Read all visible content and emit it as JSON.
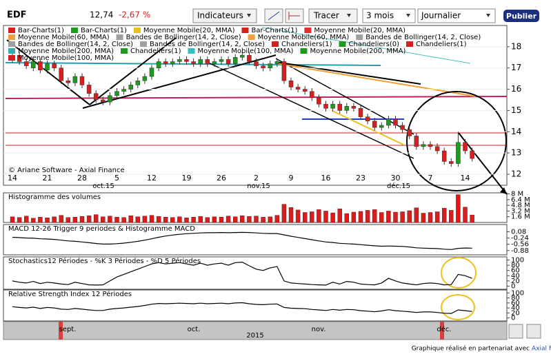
{
  "toolbar": {
    "symbol": "EDF",
    "price": "12,74",
    "change": "-2,67 %",
    "indicators": "Indicateurs",
    "draw": "Tracer",
    "period": "3 mois",
    "interval": "Journalier",
    "publish": "Publier"
  },
  "copyright": "© Ariane Software - Axial Finance",
  "x_group_labels": [
    "oct.15",
    "nov.15",
    "déc.15"
  ],
  "navigator": {
    "months": [
      "sept.",
      "oct.",
      "nov.",
      "déc."
    ],
    "year": "2015"
  },
  "footer": {
    "text": "Graphique réalisé en partenariat avec",
    "link": "Axial Finance"
  },
  "chart_data": [
    {
      "type": "candlestick",
      "categories": [
        "14",
        null,
        null,
        null,
        null,
        "21",
        null,
        null,
        null,
        null,
        "28",
        null,
        null,
        null,
        null,
        "5",
        null,
        null,
        null,
        null,
        "12",
        null,
        null,
        null,
        null,
        "19",
        null,
        null,
        null,
        null,
        "26",
        null,
        null,
        null,
        null,
        "2",
        null,
        null,
        null,
        null,
        "9",
        null,
        null,
        null,
        null,
        "16",
        null,
        null,
        null,
        null,
        "23",
        null,
        null,
        null,
        null,
        "30",
        null,
        null,
        null,
        null,
        "7",
        null,
        null,
        null,
        null,
        "14",
        null
      ],
      "open": [
        17.4,
        17.6,
        17.3,
        17.0,
        17.3,
        16.9,
        17.2,
        17.0,
        16.4,
        16.3,
        16.6,
        16.2,
        15.8,
        15.5,
        15.4,
        15.7,
        15.9,
        16.0,
        16.2,
        16.4,
        16.6,
        17.0,
        17.3,
        17.2,
        17.3,
        17.4,
        17.3,
        17.2,
        17.4,
        17.2,
        17.3,
        17.4,
        17.2,
        17.5,
        17.6,
        17.3,
        17.1,
        17.0,
        17.2,
        17.3,
        16.4,
        16.1,
        16.0,
        15.9,
        15.6,
        15.3,
        15.1,
        15.3,
        15.0,
        15.2,
        15.1,
        14.7,
        14.5,
        14.2,
        14.3,
        14.6,
        14.3,
        14.1,
        13.8,
        13.3,
        13.4,
        13.3,
        13.1,
        12.6,
        12.5,
        13.5,
        13.1
      ],
      "high": [
        17.75,
        17.75,
        17.45,
        17.45,
        17.45,
        17.35,
        17.35,
        17.15,
        16.55,
        16.75,
        16.75,
        16.35,
        15.95,
        15.65,
        15.85,
        16.05,
        16.15,
        16.35,
        16.55,
        16.75,
        17.15,
        17.45,
        17.45,
        17.45,
        17.55,
        17.55,
        17.45,
        17.55,
        17.55,
        17.45,
        17.55,
        17.55,
        17.65,
        17.75,
        17.75,
        17.45,
        17.25,
        17.35,
        17.45,
        17.45,
        16.55,
        16.25,
        16.15,
        16.05,
        15.75,
        15.45,
        15.45,
        15.45,
        15.35,
        15.35,
        15.25,
        14.85,
        14.65,
        14.45,
        14.75,
        14.75,
        14.45,
        14.25,
        13.95,
        13.55,
        13.55,
        13.45,
        13.25,
        12.75,
        14.0,
        13.65,
        13.25
      ],
      "low": [
        17.25,
        17.15,
        16.95,
        16.85,
        16.75,
        16.75,
        16.85,
        16.25,
        16.15,
        16.15,
        16.05,
        15.65,
        15.35,
        15.25,
        15.25,
        15.55,
        15.75,
        15.85,
        16.05,
        16.25,
        16.45,
        16.85,
        17.05,
        17.05,
        17.15,
        17.15,
        17.05,
        17.05,
        17.05,
        17.05,
        17.15,
        17.05,
        17.05,
        17.35,
        17.15,
        16.95,
        16.85,
        16.85,
        17.05,
        16.25,
        15.95,
        15.85,
        15.75,
        15.45,
        15.15,
        14.95,
        14.95,
        14.85,
        14.85,
        14.95,
        14.55,
        14.35,
        14.05,
        14.05,
        14.15,
        14.15,
        13.95,
        13.65,
        13.15,
        13.15,
        13.15,
        12.95,
        12.45,
        12.35,
        12.35,
        12.95,
        12.6
      ],
      "close": [
        17.6,
        17.3,
        17.1,
        17.3,
        16.9,
        17.2,
        17.0,
        16.4,
        16.3,
        16.6,
        16.2,
        15.8,
        15.5,
        15.4,
        15.7,
        15.9,
        16.0,
        16.2,
        16.4,
        16.6,
        17.0,
        17.3,
        17.2,
        17.3,
        17.4,
        17.3,
        17.2,
        17.4,
        17.2,
        17.3,
        17.4,
        17.2,
        17.5,
        17.6,
        17.3,
        17.1,
        17.0,
        17.2,
        17.3,
        16.4,
        16.1,
        16.0,
        15.9,
        15.6,
        15.3,
        15.1,
        15.3,
        15.0,
        15.2,
        15.1,
        14.7,
        14.5,
        14.2,
        14.3,
        14.6,
        14.3,
        14.1,
        13.8,
        13.3,
        13.4,
        13.3,
        13.1,
        12.6,
        12.5,
        13.5,
        13.1,
        12.74
      ],
      "up_color": "#1f9a1f",
      "down_color": "#d42020",
      "ylim": [
        11.48,
        19.0
      ],
      "yticks": [
        12,
        13,
        14,
        15,
        16,
        17,
        18
      ],
      "legend": [
        {
          "name": "Bar-Charts(1)",
          "color": "#d42020"
        },
        {
          "name": "Bar-Charts(1)",
          "color": "#1f9a1f"
        },
        {
          "name": "Moyenne Mobile(20, MMA)",
          "color": "#e8c020"
        },
        {
          "name": "Bar-Charts(1)",
          "color": "#d42020"
        },
        {
          "name": "Moyenne Mobile(20, MMA)",
          "color": "#e03030"
        },
        {
          "name": "Moyenne Mobile(60, MMA)",
          "color": "#f0a040"
        },
        {
          "name": "Bandes de Bollinger(14, 2, Close)",
          "color": "#a0a0a0"
        },
        {
          "name": "Moyenne Mobile(60, MMA)",
          "color": "#f0a040"
        },
        {
          "name": "Bandes de Bollinger(14, 2, Close)",
          "color": "#a0a0a0"
        },
        {
          "name": "Bandes de Bollinger(14, 2, Close)",
          "color": "#a0a0a0"
        },
        {
          "name": "Bandes de Bollinger(14, 2, Close)",
          "color": "#a0a0a0"
        },
        {
          "name": "Chandeliers(1)",
          "color": "#d42020"
        },
        {
          "name": "Chandeliers(0)",
          "color": "#1f9a1f"
        },
        {
          "name": "Chandeliers(1)",
          "color": "#d42020"
        },
        {
          "name": "Moyenne Mobile(200, MMA)",
          "color": "#30b0b0"
        },
        {
          "name": "Chandeliers(1)",
          "color": "#1f9a1f"
        },
        {
          "name": "Moyenne Mobile(100, MMA)",
          "color": "#30c0c0"
        },
        {
          "name": "Moyenne Mobile(200, MMA)",
          "color": "#1f9a1f"
        },
        {
          "name": "Moyenne Mobile(100, MMA)",
          "color": "#d42020"
        }
      ]
    },
    {
      "type": "bar",
      "title": "Histogramme des volumes",
      "values": [
        1.6,
        1.4,
        1.8,
        1.2,
        1.5,
        1.3,
        1.6,
        2.0,
        1.4,
        1.5,
        1.7,
        1.9,
        2.2,
        1.6,
        1.8,
        1.5,
        1.4,
        1.9,
        1.6,
        1.8,
        2.0,
        1.7,
        1.5,
        1.4,
        1.6,
        1.3,
        1.5,
        1.7,
        1.4,
        1.6,
        1.5,
        1.8,
        1.6,
        1.9,
        1.7,
        1.8,
        1.5,
        1.6,
        2.0,
        5.1,
        4.2,
        3.5,
        2.8,
        3.0,
        3.6,
        3.2,
        2.7,
        3.8,
        2.5,
        2.9,
        3.1,
        3.4,
        3.6,
        2.8,
        3.2,
        2.9,
        3.0,
        3.3,
        4.1,
        2.6,
        2.8,
        3.0,
        4.0,
        3.4,
        7.8,
        4.3,
        2.1
      ],
      "color": "#e01818",
      "ylim": [
        0,
        8.3
      ],
      "yticks": [
        {
          "value": 1.6,
          "label": "1.6 M"
        },
        {
          "value": 3.2,
          "label": "3.2 M"
        },
        {
          "value": 4.8,
          "label": "4.8 M"
        },
        {
          "value": 6.4,
          "label": "6.4 M"
        },
        {
          "value": 8,
          "label": "8 M"
        }
      ]
    },
    {
      "type": "line",
      "title": "MACD 12-26   Trigger 9 periodes & Histogramme MACD",
      "values": [
        -0.2,
        -0.22,
        -0.24,
        -0.25,
        -0.28,
        -0.29,
        -0.31,
        -0.35,
        -0.39,
        -0.41,
        -0.44,
        -0.48,
        -0.52,
        -0.55,
        -0.55,
        -0.53,
        -0.5,
        -0.46,
        -0.41,
        -0.35,
        -0.28,
        -0.2,
        -0.14,
        -0.09,
        -0.05,
        -0.02,
        0.0,
        0.02,
        0.03,
        0.03,
        0.04,
        0.03,
        0.04,
        0.05,
        0.04,
        0.02,
        0.0,
        -0.01,
        -0.01,
        -0.08,
        -0.15,
        -0.21,
        -0.27,
        -0.33,
        -0.39,
        -0.44,
        -0.47,
        -0.51,
        -0.53,
        -0.55,
        -0.58,
        -0.61,
        -0.64,
        -0.66,
        -0.65,
        -0.66,
        -0.67,
        -0.7,
        -0.74,
        -0.76,
        -0.77,
        -0.78,
        -0.81,
        -0.83,
        -0.77,
        -0.75,
        -0.76
      ],
      "color": "#000000",
      "ylim": [
        -1.1,
        0.45
      ],
      "yticks": [
        0.08,
        -0.24,
        -0.56,
        -0.88
      ]
    },
    {
      "type": "line",
      "title": "Stochastics12 Périodes  -  %K 3 Périodes  -  %D 5 Périodes",
      "values": [
        20,
        15,
        12,
        18,
        10,
        15,
        12,
        8,
        6,
        15,
        10,
        5,
        4,
        5,
        20,
        35,
        45,
        55,
        65,
        75,
        85,
        90,
        85,
        88,
        90,
        85,
        80,
        88,
        80,
        85,
        88,
        80,
        90,
        92,
        78,
        65,
        60,
        70,
        75,
        20,
        12,
        10,
        8,
        6,
        5,
        4,
        15,
        8,
        18,
        15,
        8,
        6,
        5,
        12,
        30,
        20,
        12,
        8,
        5,
        10,
        12,
        10,
        5,
        6,
        45,
        40,
        30
      ],
      "color": "#000000",
      "ylim": [
        -12,
        112
      ],
      "yticks": [
        0,
        20,
        40,
        60,
        80,
        100
      ]
    },
    {
      "type": "line",
      "title": "Relative Strength Index 12 Périodes",
      "values": [
        45,
        42,
        40,
        43,
        38,
        42,
        40,
        35,
        34,
        38,
        35,
        32,
        30,
        30,
        35,
        38,
        40,
        43,
        46,
        50,
        55,
        58,
        57,
        58,
        59,
        58,
        57,
        59,
        57,
        58,
        59,
        57,
        60,
        61,
        57,
        54,
        53,
        55,
        56,
        42,
        39,
        38,
        37,
        34,
        32,
        30,
        34,
        31,
        34,
        33,
        29,
        27,
        25,
        28,
        33,
        29,
        27,
        25,
        22,
        24,
        24,
        22,
        19,
        18,
        32,
        29,
        26
      ],
      "color": "#000000",
      "ylim": [
        -12,
        112
      ],
      "yticks": [
        0,
        20,
        40,
        60,
        80,
        100
      ]
    }
  ]
}
